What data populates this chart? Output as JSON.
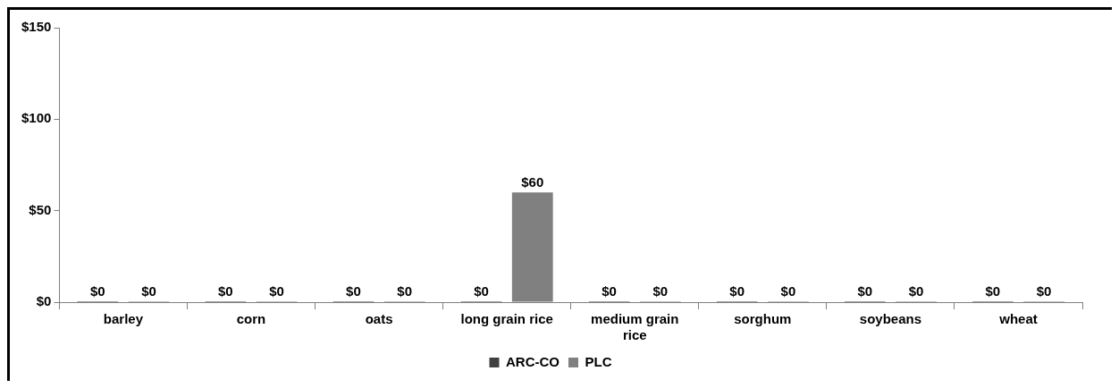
{
  "chart_data": {
    "type": "bar",
    "categories": [
      "barley",
      "corn",
      "oats",
      "long grain rice",
      "medium grain rice",
      "sorghum",
      "soybeans",
      "wheat"
    ],
    "series": [
      {
        "name": "ARC-CO",
        "color": "#404040",
        "values": [
          0,
          0,
          0,
          0,
          0,
          0,
          0,
          0
        ],
        "value_labels": [
          "$0",
          "$0",
          "$0",
          "$0",
          "$0",
          "$0",
          "$0",
          "$0"
        ]
      },
      {
        "name": "PLC",
        "color": "#808080",
        "values": [
          0,
          0,
          0,
          60,
          0,
          0,
          0,
          0
        ],
        "value_labels": [
          "$0",
          "$0",
          "$0",
          "$60",
          "$0",
          "$0",
          "$0",
          "$0"
        ]
      }
    ],
    "ylim": [
      0,
      150
    ],
    "yticks": [
      {
        "value": 0,
        "label": "$0"
      },
      {
        "value": 50,
        "label": "$50"
      },
      {
        "value": 100,
        "label": "$100"
      },
      {
        "value": 150,
        "label": "$150"
      }
    ],
    "grid": false,
    "legend": "bottom"
  }
}
